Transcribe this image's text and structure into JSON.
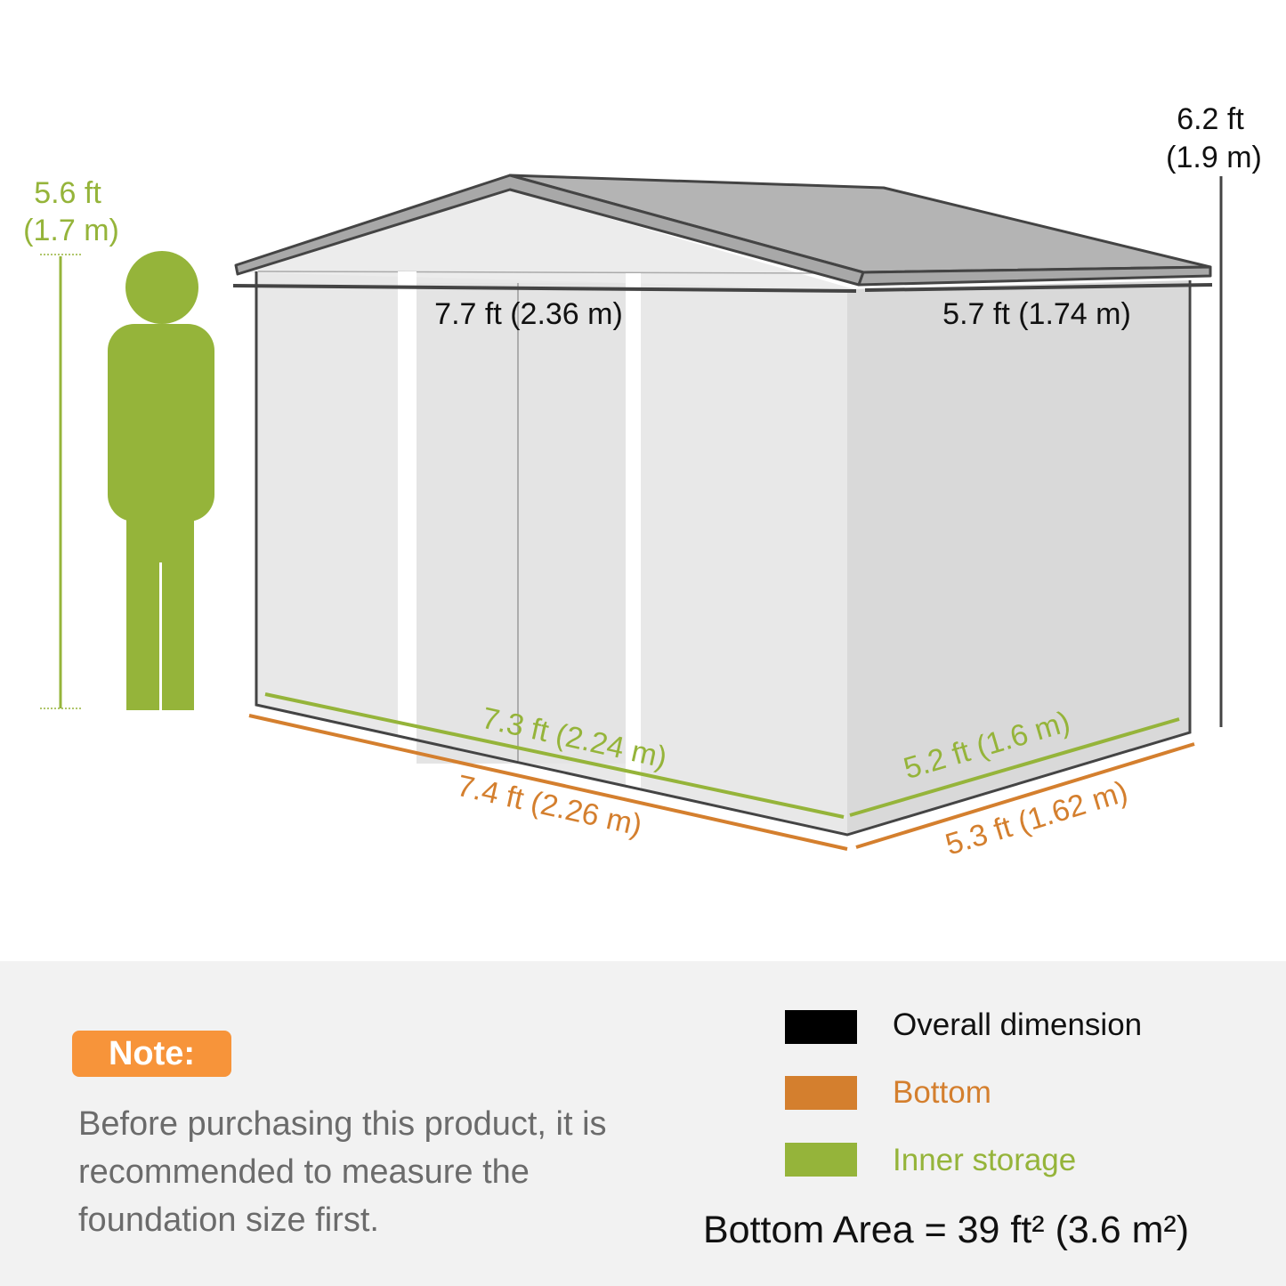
{
  "colors": {
    "overall": "#000000",
    "bottom": "#d47f2e",
    "inner": "#95b43a",
    "person": "#95b43a",
    "note_badge": "#f7943a"
  },
  "person_height": {
    "ft": "5.6 ft",
    "m": "(1.7 m)"
  },
  "shed_height": {
    "ft": "6.2 ft",
    "m": "(1.9 m)"
  },
  "overall": {
    "width": "7.7 ft (2.36 m)",
    "depth": "5.7 ft (1.74 m)"
  },
  "inner": {
    "width": "7.3 ft (2.24 m)",
    "depth": "5.2 ft (1.6 m)"
  },
  "bottom": {
    "width": "7.4 ft (2.26 m)",
    "depth": "5.3 ft (1.62 m)"
  },
  "note": {
    "label": "Note:",
    "text": "Before purchasing this product, it is recommended to measure the foundation size first."
  },
  "legend": [
    {
      "label": "Overall dimension",
      "color": "#000000"
    },
    {
      "label": "Bottom",
      "color": "#d47f2e"
    },
    {
      "label": "Inner storage",
      "color": "#95b43a"
    }
  ],
  "area": "Bottom Area = 39 ft² (3.6 m²)"
}
